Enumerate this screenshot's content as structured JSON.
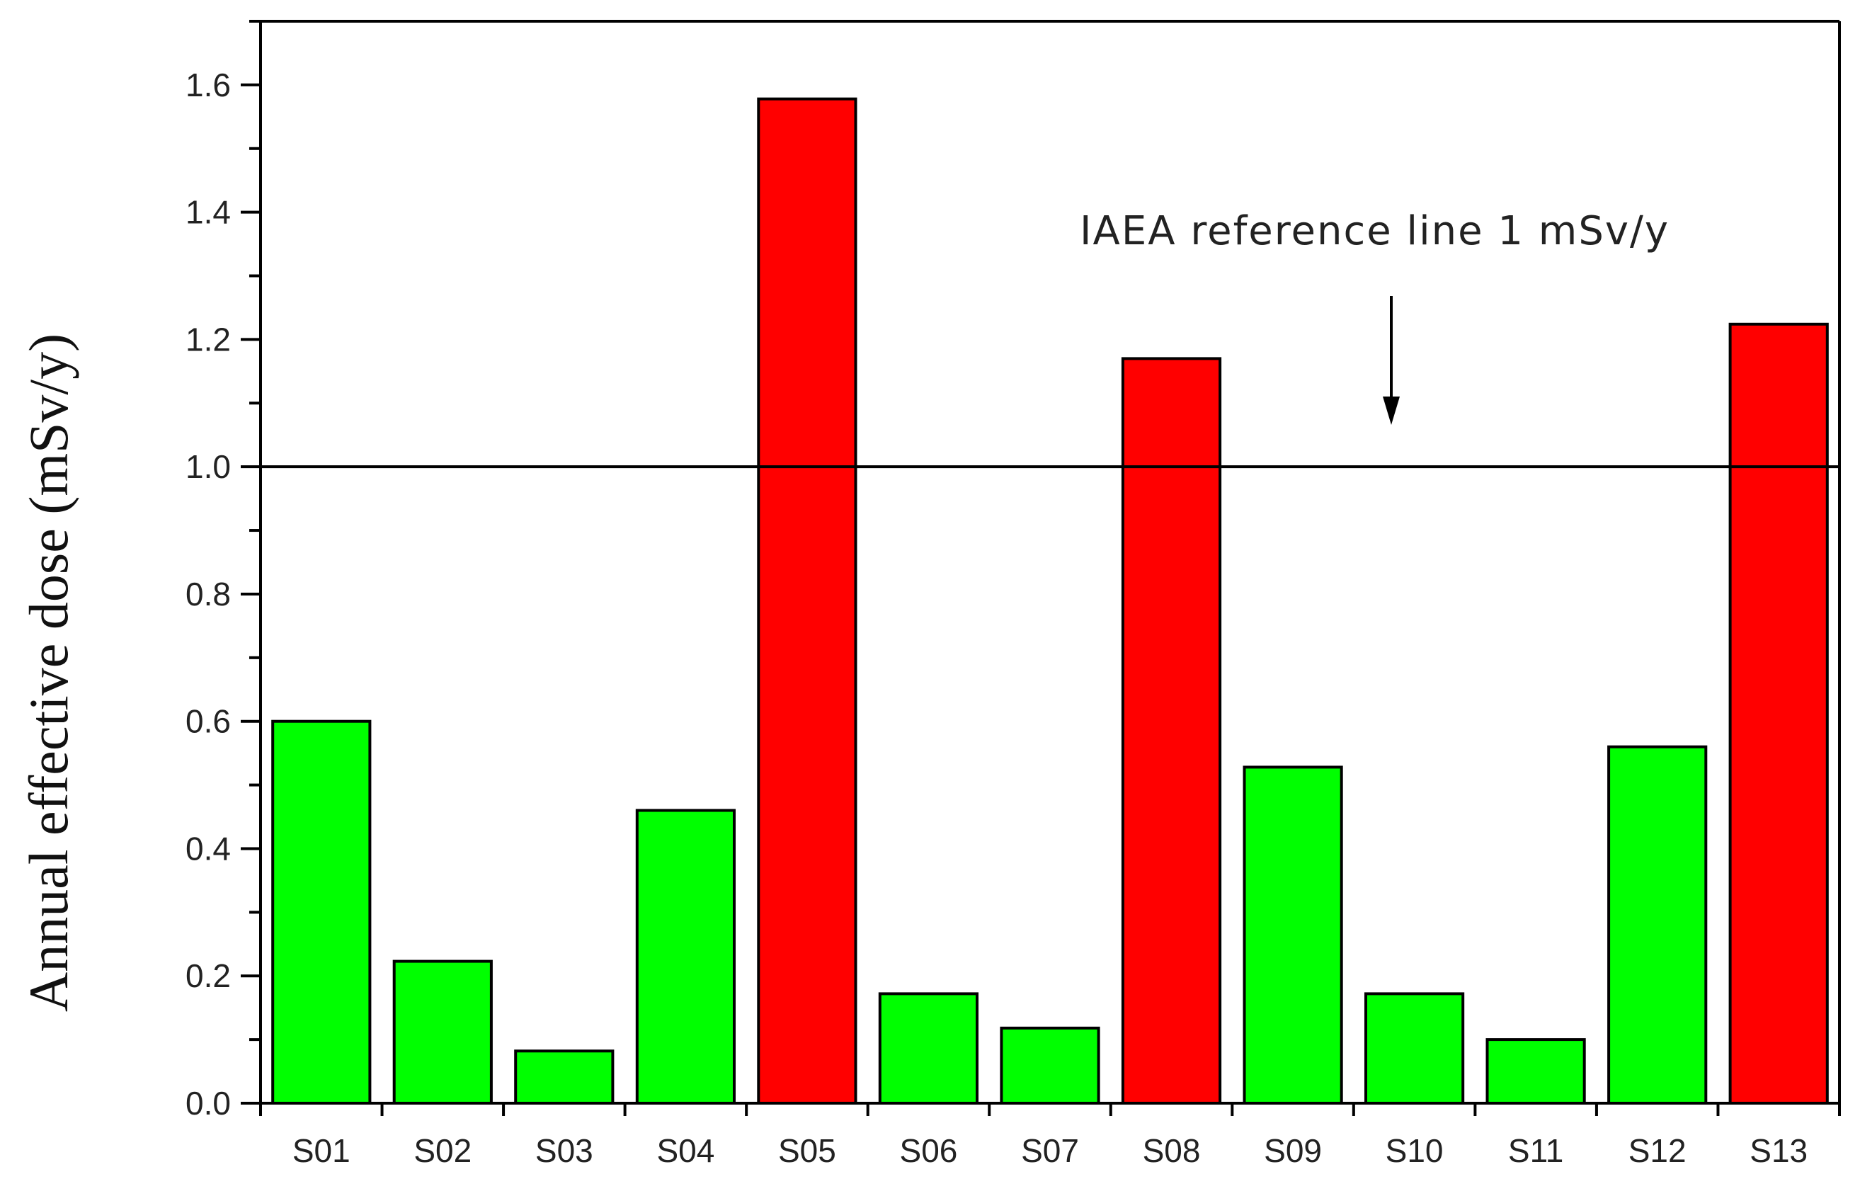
{
  "chart_data": {
    "type": "bar",
    "title": "",
    "xlabel": "",
    "ylabel": "Annual effective dose (mSv/y)",
    "ylim": [
      0,
      1.7
    ],
    "yticks": [
      "0.0",
      "0.2",
      "0.4",
      "0.6",
      "0.8",
      "1.0",
      "1.2",
      "1.4",
      "1.6"
    ],
    "categories": [
      "S01",
      "S02",
      "S03",
      "S04",
      "S05",
      "S06",
      "S07",
      "S08",
      "S09",
      "S10",
      "S11",
      "S12",
      "S13"
    ],
    "values": [
      0.6,
      0.223,
      0.082,
      0.46,
      1.578,
      0.172,
      0.118,
      1.17,
      0.528,
      0.172,
      0.1,
      0.56,
      1.224
    ],
    "reference_line": {
      "value": 1.0,
      "label": "IAEA reference line 1 mSv/y"
    },
    "colors": {
      "below_reference": "#00ff00",
      "above_reference": "#ff0000",
      "outline": "#000000"
    },
    "grid": false,
    "legend": "none"
  }
}
